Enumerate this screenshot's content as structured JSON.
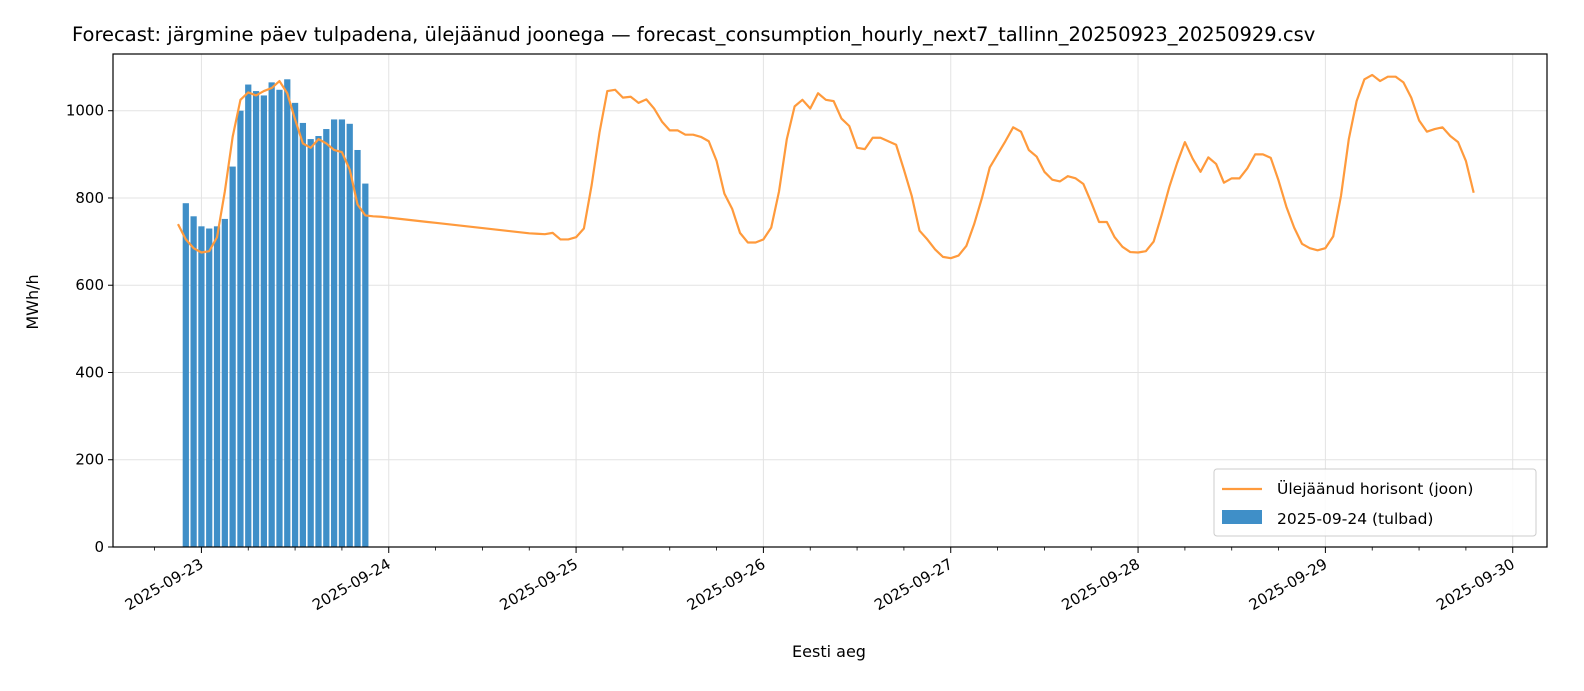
{
  "chart_data": {
    "type": "bar+line",
    "title": "Forecast: järgmine päev tulpadena, ülejäänud joonega — forecast_consumption_hourly_next7_tallinn_20250923_20250929.csv",
    "xlabel": "Eesti aeg",
    "ylabel": "MWh/h",
    "ylim": [
      0,
      1130
    ],
    "yticks": [
      0,
      200,
      400,
      600,
      800,
      1000
    ],
    "xlim_days_since_2025_09_23": [
      -0.472,
      7.183
    ],
    "xticks": [
      {
        "label": "2025-09-23",
        "day": 0
      },
      {
        "label": "2025-09-24",
        "day": 1
      },
      {
        "label": "2025-09-25",
        "day": 2
      },
      {
        "label": "2025-09-26",
        "day": 3
      },
      {
        "label": "2025-09-27",
        "day": 4
      },
      {
        "label": "2025-09-28",
        "day": 5
      },
      {
        "label": "2025-09-29",
        "day": 6
      },
      {
        "label": "2025-09-30",
        "day": 7
      }
    ],
    "grid": true,
    "legend_position": "lower right",
    "series": [
      {
        "name": "Ülejäänud horisont (joon)",
        "kind": "line",
        "color": "#ff9a3c",
        "start_day": -0.125,
        "step_hours": 1,
        "values": [
          740,
          705,
          685,
          675,
          678,
          710,
          815,
          940,
          1025,
          1042,
          1035,
          1045,
          1052,
          1068,
          1040,
          980,
          925,
          915,
          935,
          925,
          910,
          905,
          865,
          785,
          760,
          758,
          757,
          755,
          753,
          751,
          749,
          747,
          745,
          743,
          741,
          739,
          737,
          735,
          733,
          731,
          729,
          727,
          725,
          723,
          721,
          719,
          718,
          717,
          720,
          705,
          705,
          710,
          730,
          830,
          950,
          1045,
          1048,
          1030,
          1032,
          1018,
          1026,
          1005,
          975,
          955,
          955,
          945,
          945,
          940,
          930,
          885,
          810,
          775,
          720,
          698,
          698,
          705,
          732,
          815,
          935,
          1010,
          1025,
          1005,
          1040,
          1025,
          1022,
          982,
          965,
          915,
          912,
          938,
          938,
          930,
          922,
          865,
          805,
          725,
          705,
          682,
          665,
          662,
          668,
          690,
          740,
          800,
          870,
          900,
          930,
          962,
          952,
          910,
          895,
          860,
          842,
          838,
          850,
          845,
          832,
          790,
          745,
          745,
          710,
          688,
          676,
          675,
          678,
          700,
          760,
          825,
          880,
          928,
          890,
          860,
          893,
          878,
          835,
          845,
          845,
          868,
          900,
          900,
          892,
          840,
          780,
          732,
          695,
          685,
          680,
          685,
          712,
          805,
          935,
          1022,
          1072,
          1082,
          1068,
          1078,
          1078,
          1065,
          1030,
          978,
          952,
          958,
          962,
          942,
          928,
          885,
          812
        ]
      },
      {
        "name": "2025-09-24 (tulbad)",
        "kind": "bar",
        "color": "#3f8fc8",
        "start_day": -0.125,
        "step_hours": 1,
        "values": [
          788,
          758,
          735,
          730,
          735,
          752,
          872,
          1000,
          1060,
          1045,
          1035,
          1065,
          1048,
          1072,
          1018,
          972,
          935,
          942,
          958,
          980,
          980,
          970,
          910,
          833
        ]
      }
    ]
  }
}
